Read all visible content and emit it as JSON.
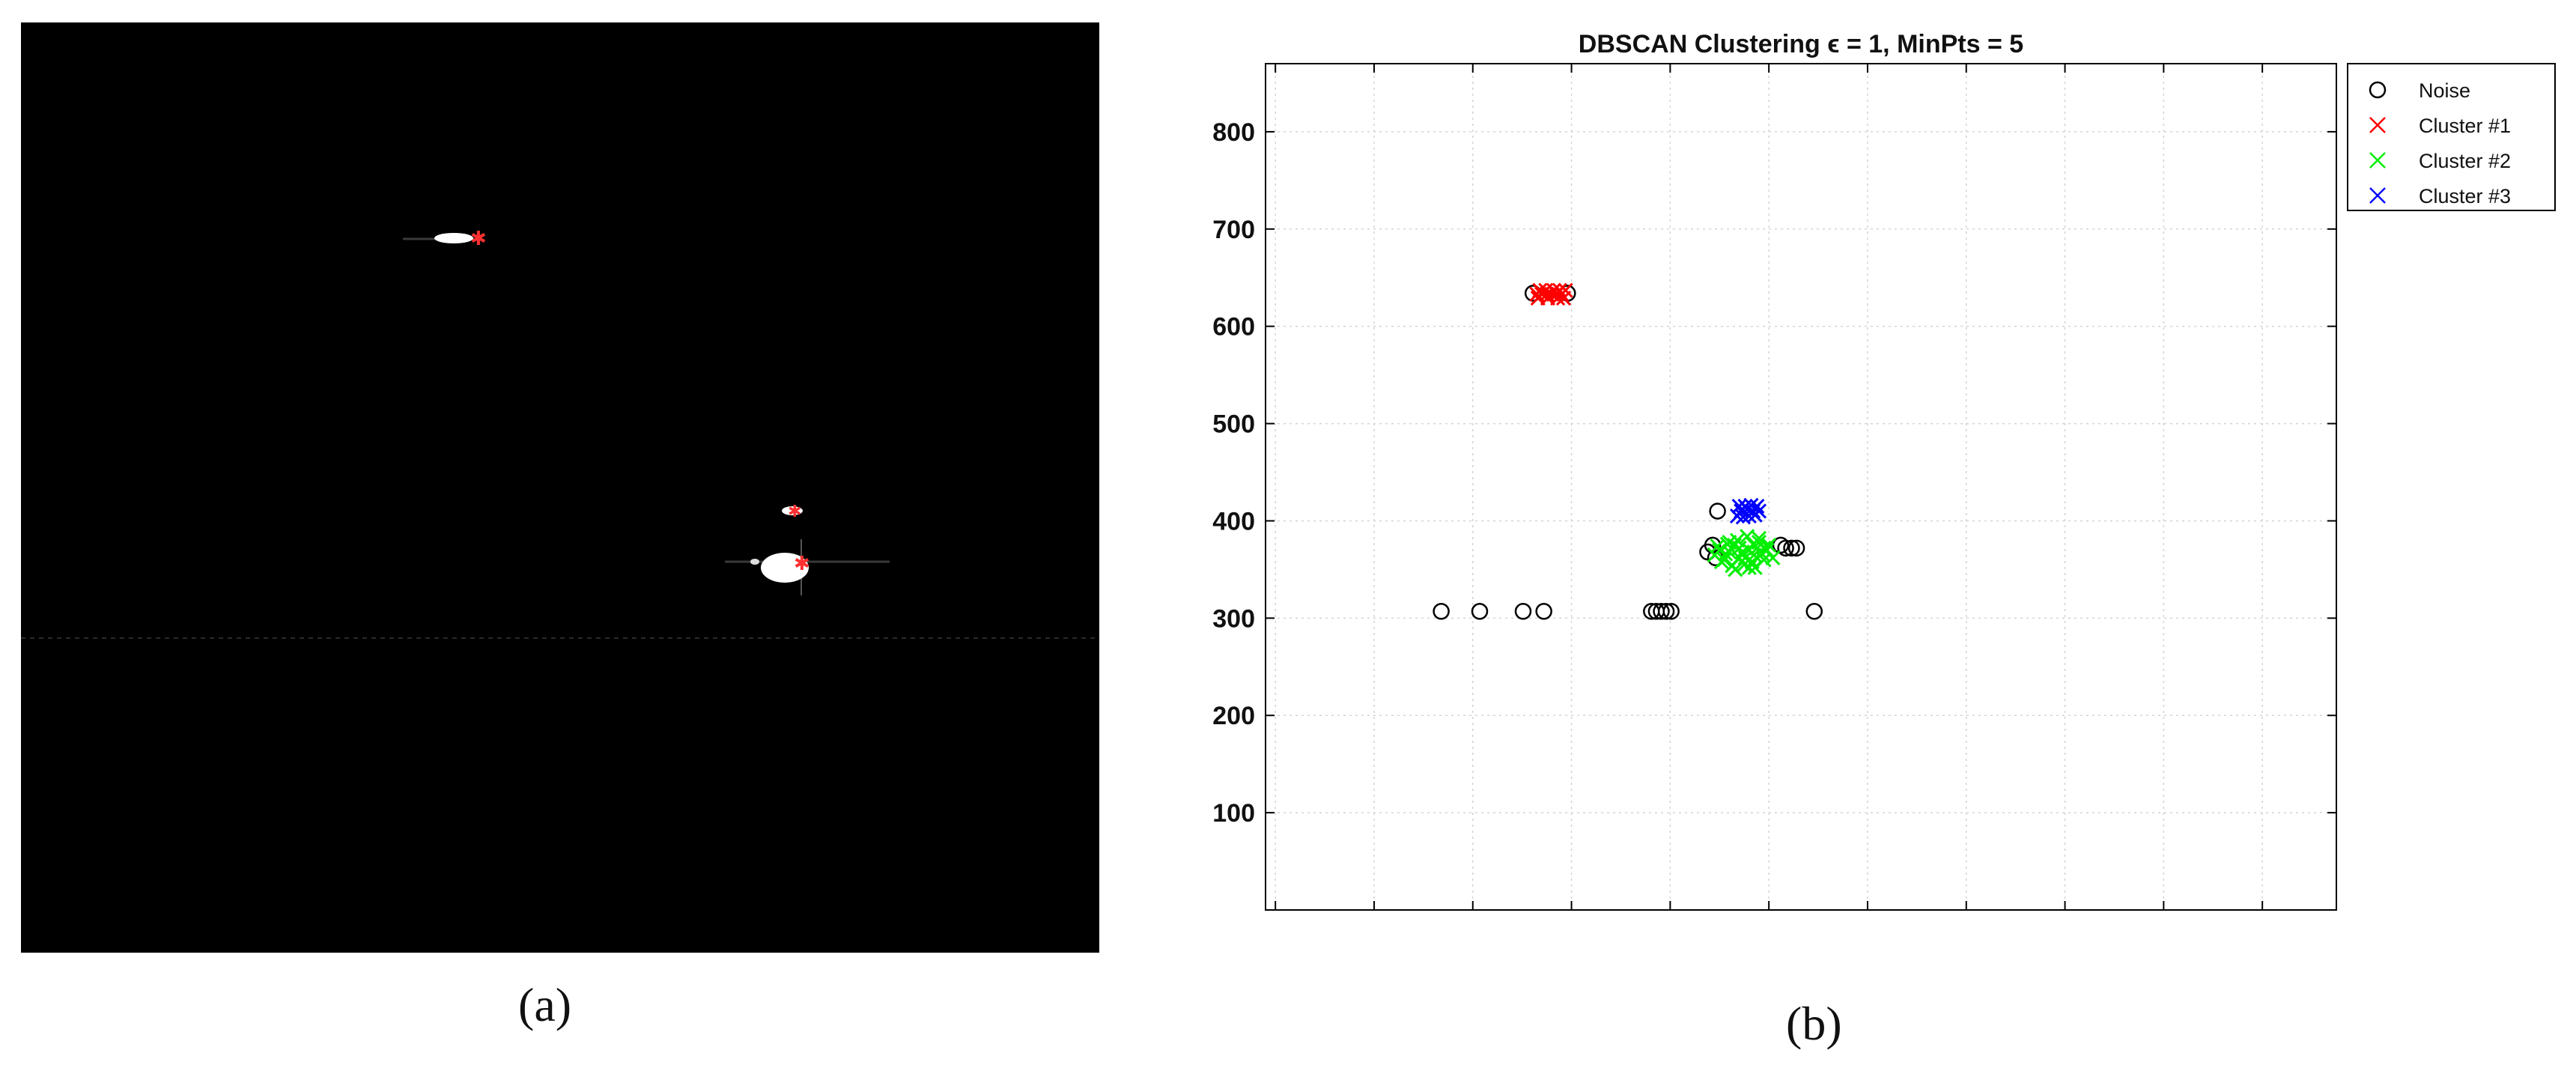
{
  "captions": {
    "a": "(a)",
    "b": "(b)"
  },
  "colors": {
    "noise": "#000000",
    "cluster1": "#ff0000",
    "cluster2": "#00ee00",
    "cluster3": "#0000ff",
    "background_a": "#000000"
  },
  "chart_data": {
    "type": "scatter",
    "title": "DBSCAN Clustering  ϵ = 1, MinPts = 5",
    "xlim": [
      -10,
      1075
    ],
    "ylim": [
      0,
      870
    ],
    "xticks": [
      0,
      100,
      200,
      300,
      400,
      500,
      600,
      700,
      800,
      900,
      1000
    ],
    "yticks": [
      100,
      200,
      300,
      400,
      500,
      600,
      700,
      800
    ],
    "grid": true,
    "legend_position": "outside-top-right",
    "series": [
      {
        "name": "Noise",
        "marker": "o",
        "color": "#000000",
        "points": [
          [
            168,
            307
          ],
          [
            207,
            307
          ],
          [
            251,
            307
          ],
          [
            272,
            307
          ],
          [
            381,
            307
          ],
          [
            386,
            307
          ],
          [
            391,
            307
          ],
          [
            396,
            307
          ],
          [
            401,
            307
          ],
          [
            546,
            307
          ],
          [
            448,
            410
          ],
          [
            261,
            634
          ],
          [
            296,
            634
          ],
          [
            438,
            368
          ],
          [
            446,
            362
          ],
          [
            443,
            375
          ],
          [
            517,
            372
          ],
          [
            523,
            372
          ],
          [
            528,
            372
          ],
          [
            512,
            375
          ]
        ]
      },
      {
        "name": "Cluster #1",
        "marker": "x",
        "color": "#ff0000",
        "points": [
          [
            265,
            633
          ],
          [
            270,
            633
          ],
          [
            275,
            633
          ],
          [
            280,
            633
          ],
          [
            285,
            633
          ],
          [
            290,
            633
          ],
          [
            268,
            637
          ],
          [
            274,
            637
          ],
          [
            282,
            637
          ],
          [
            288,
            637
          ],
          [
            294,
            637
          ],
          [
            266,
            629
          ],
          [
            276,
            629
          ],
          [
            286,
            629
          ],
          [
            292,
            629
          ]
        ]
      },
      {
        "name": "Cluster #2",
        "marker": "x",
        "color": "#00ee00",
        "points": [
          [
            445,
            365
          ],
          [
            450,
            370
          ],
          [
            455,
            360
          ],
          [
            460,
            368
          ],
          [
            465,
            375
          ],
          [
            470,
            362
          ],
          [
            475,
            355
          ],
          [
            480,
            370
          ],
          [
            485,
            365
          ],
          [
            490,
            378
          ],
          [
            495,
            360
          ],
          [
            498,
            370
          ],
          [
            452,
            358
          ],
          [
            458,
            376
          ],
          [
            463,
            354
          ],
          [
            468,
            380
          ],
          [
            473,
            368
          ],
          [
            478,
            384
          ],
          [
            483,
            358
          ],
          [
            488,
            372
          ],
          [
            493,
            366
          ],
          [
            500,
            375
          ],
          [
            504,
            362
          ],
          [
            448,
            374
          ],
          [
            456,
            366
          ],
          [
            466,
            350
          ],
          [
            476,
            362
          ],
          [
            486,
            352
          ],
          [
            470,
            372
          ],
          [
            480,
            352
          ],
          [
            490,
            382
          ],
          [
            495,
            372
          ],
          [
            460,
            378
          ],
          [
            484,
            376
          ]
        ]
      },
      {
        "name": "Cluster #3",
        "marker": "x",
        "color": "#0000ff",
        "points": [
          [
            468,
            405
          ],
          [
            472,
            410
          ],
          [
            476,
            415
          ],
          [
            480,
            405
          ],
          [
            484,
            410
          ],
          [
            488,
            415
          ],
          [
            470,
            415
          ],
          [
            478,
            412
          ],
          [
            486,
            406
          ],
          [
            490,
            410
          ],
          [
            474,
            404
          ],
          [
            482,
            416
          ]
        ]
      }
    ]
  }
}
